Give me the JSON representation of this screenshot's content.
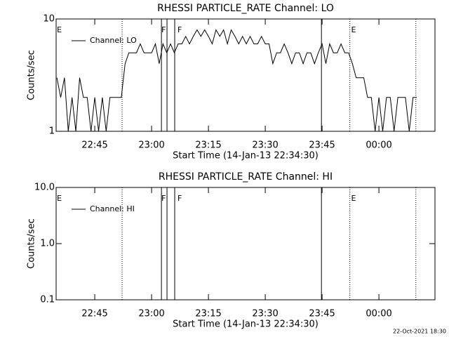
{
  "chart_data": [
    {
      "type": "line",
      "title": "RHESSI PARTICLE_RATE Channel: LO",
      "x_label": "Start Time (14-Jan-13 22:34:30)",
      "y_label": "Counts/sec",
      "log_y": true,
      "ylim": [
        1,
        10
      ],
      "yticks": [
        1,
        10
      ],
      "xlim": [
        "22:34:48",
        "00:14:48"
      ],
      "xticks": [
        "22:45",
        "23:00",
        "23:15",
        "23:30",
        "23:45",
        "00:00"
      ],
      "x": [
        "22:35",
        "22:36",
        "22:37",
        "22:38",
        "22:39",
        "22:40",
        "22:41",
        "22:42",
        "22:43",
        "22:44",
        "22:45",
        "22:46",
        "22:47",
        "22:48",
        "22:49",
        "22:50",
        "22:51",
        "22:52",
        "22:53",
        "22:54",
        "22:55",
        "22:56",
        "22:57",
        "22:58",
        "22:59",
        "23:00",
        "23:01",
        "23:02",
        "23:03",
        "23:04",
        "23:05",
        "23:06",
        "23:07",
        "23:08",
        "23:09",
        "23:10",
        "23:11",
        "23:12",
        "23:13",
        "23:14",
        "23:15",
        "23:16",
        "23:17",
        "23:18",
        "23:19",
        "23:20",
        "23:21",
        "23:22",
        "23:23",
        "23:24",
        "23:25",
        "23:26",
        "23:27",
        "23:28",
        "23:29",
        "23:30",
        "23:31",
        "23:32",
        "23:33",
        "23:34",
        "23:35",
        "23:36",
        "23:37",
        "23:38",
        "23:39",
        "23:40",
        "23:41",
        "23:42",
        "23:43",
        "23:44",
        "23:45",
        "23:46",
        "23:47",
        "23:48",
        "23:49",
        "23:50",
        "23:51",
        "23:52",
        "23:53",
        "23:54",
        "23:55",
        "23:56",
        "23:57",
        "23:58",
        "23:59",
        "00:00",
        "00:01",
        "00:02",
        "00:03",
        "00:04",
        "00:05",
        "00:06",
        "00:07",
        "00:08",
        "00:09",
        "00:10"
      ],
      "series": [
        {
          "name": "Channel: LO",
          "color": "#000000",
          "values": [
            3,
            2,
            3,
            1,
            2,
            1,
            3,
            2,
            2,
            1,
            2,
            1,
            2,
            1,
            2,
            2,
            2,
            2,
            4,
            5,
            5,
            5,
            6,
            5,
            5,
            5,
            6,
            4,
            6,
            5,
            6,
            5,
            6,
            6,
            7,
            6,
            7,
            8,
            7,
            8,
            7,
            6,
            8,
            7,
            8,
            6,
            8,
            7,
            6,
            7,
            6,
            7,
            6,
            6,
            7,
            6,
            6,
            4,
            5,
            5,
            6,
            5,
            4,
            5,
            5,
            4,
            5,
            5,
            4,
            5,
            6,
            4,
            6,
            5,
            5,
            6,
            5,
            5,
            4,
            3,
            3,
            3,
            2,
            2,
            1,
            2,
            1,
            2,
            2,
            1,
            2,
            2,
            2,
            1,
            2,
            2
          ]
        }
      ],
      "vlines": [
        {
          "x": "22:52:13",
          "style": "dotted"
        },
        {
          "x": "23:02:36",
          "style": "solid"
        },
        {
          "x": "23:04:04",
          "style": "solid"
        },
        {
          "x": "23:06:06",
          "style": "solid"
        },
        {
          "x": "23:44:50",
          "style": "solid"
        },
        {
          "x": "23:52:20",
          "style": "dotted"
        },
        {
          "x": "00:09:45",
          "style": "dotted"
        }
      ],
      "annotations": [
        {
          "text": "E",
          "x": "22:35"
        },
        {
          "text": "F",
          "x": "23:02:36"
        },
        {
          "text": "F",
          "x": "23:06:50"
        },
        {
          "text": "E",
          "x": "23:52:40"
        }
      ]
    },
    {
      "type": "line",
      "title": "RHESSI PARTICLE_RATE Channel: HI",
      "x_label": "Start Time (14-Jan-13 22:34:30)",
      "y_label": "Counts/sec",
      "log_y": true,
      "ylim": [
        0.1,
        10
      ],
      "yticks": [
        0.1,
        {
          "value": 1,
          "label": "1.0"
        },
        {
          "value": 10,
          "label": "10.0"
        }
      ],
      "xlim": [
        "22:34:48",
        "00:14:48"
      ],
      "xticks": [
        "22:45",
        "23:00",
        "23:15",
        "23:30",
        "23:45",
        "00:00"
      ],
      "x": [],
      "series": [
        {
          "name": "Channel: HI",
          "color": "#000000",
          "values": []
        }
      ],
      "vlines": [
        {
          "x": "22:52:13",
          "style": "dotted"
        },
        {
          "x": "23:02:36",
          "style": "solid"
        },
        {
          "x": "23:04:04",
          "style": "solid"
        },
        {
          "x": "23:06:06",
          "style": "solid"
        },
        {
          "x": "23:44:50",
          "style": "solid"
        },
        {
          "x": "23:52:20",
          "style": "dotted"
        },
        {
          "x": "00:09:45",
          "style": "dotted"
        }
      ],
      "annotations": [
        {
          "text": "E",
          "x": "22:35"
        },
        {
          "text": "F",
          "x": "23:02:36"
        },
        {
          "text": "F",
          "x": "23:06:50"
        },
        {
          "text": "E",
          "x": "23:52:40"
        }
      ]
    }
  ],
  "footer": "22-Oct-2021 18:30"
}
